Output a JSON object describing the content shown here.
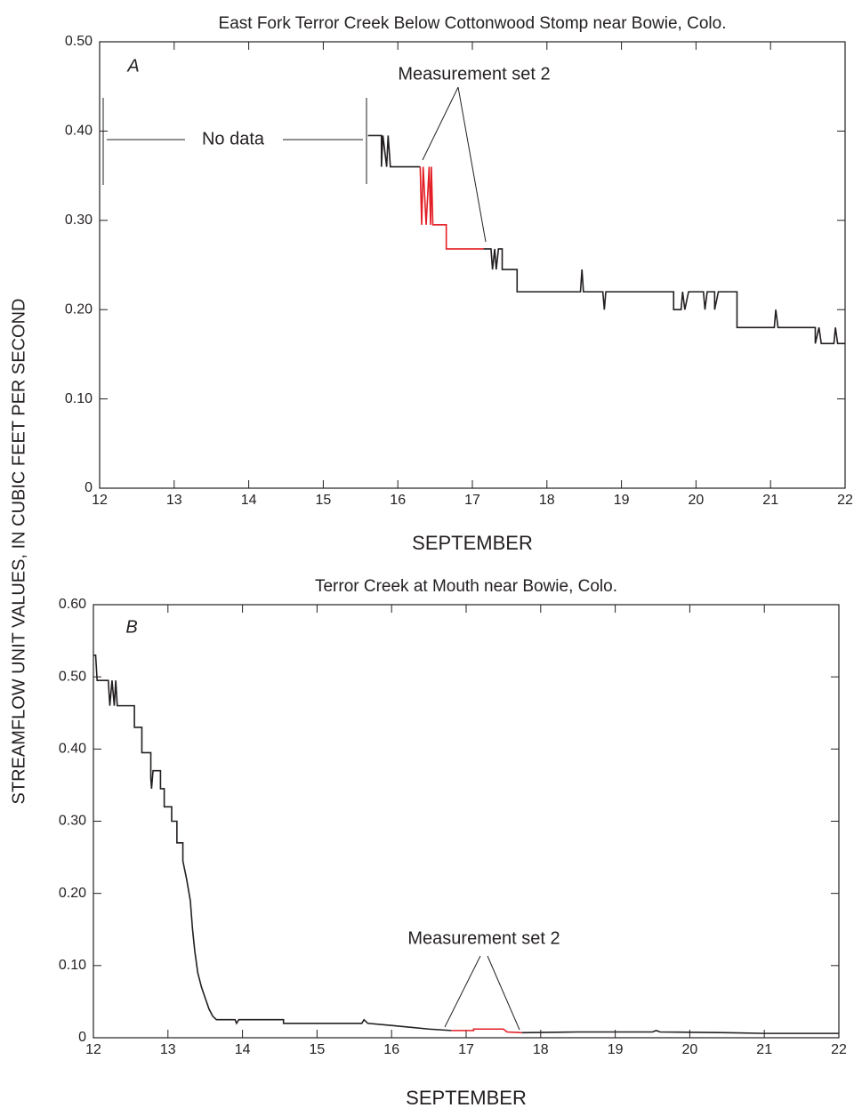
{
  "y_label": "STREAMFLOW UNIT VALUES, IN CUBIC FEET PER SECOND",
  "chart_data": [
    {
      "type": "line",
      "title": "East Fork Terror Creek Below Cottonwood Stomp near Bowie, Colo.",
      "panel_label": "A",
      "x_label": "SEPTEMBER",
      "annotations": [
        "No data",
        "Measurement set 2"
      ],
      "xlim": [
        12,
        22
      ],
      "xticks": [
        12,
        13,
        14,
        15,
        16,
        17,
        18,
        19,
        20,
        21,
        22
      ],
      "ylim": [
        0,
        0.5
      ],
      "yticks": [
        0,
        {
          "value": 0.1,
          "label": "0.10"
        },
        {
          "value": 0.2,
          "label": "0.20"
        },
        {
          "value": 0.3,
          "label": "0.30"
        },
        {
          "value": 0.4,
          "label": "0.40"
        },
        {
          "value": 0.5,
          "label": "0.50"
        }
      ],
      "series": [
        {
          "color": "#231f20",
          "x": [
            15.6,
            15.78,
            15.78,
            15.8,
            15.85,
            15.87,
            15.9,
            16.3
          ],
          "values": [
            0.395,
            0.395,
            0.36,
            0.395,
            0.36,
            0.395,
            0.36,
            0.36
          ]
        },
        {
          "color": "#e31e24",
          "x": [
            16.3,
            16.32,
            16.34,
            16.38,
            16.42,
            16.44,
            16.45,
            16.47,
            16.65,
            16.65,
            17.15
          ],
          "values": [
            0.36,
            0.295,
            0.36,
            0.295,
            0.36,
            0.295,
            0.36,
            0.295,
            0.295,
            0.268,
            0.268
          ]
        },
        {
          "color": "#231f20",
          "x": [
            17.15,
            17.25,
            17.27,
            17.3,
            17.32,
            17.35,
            17.4,
            17.4,
            17.6,
            17.6,
            18.45,
            18.47,
            18.49,
            18.75,
            18.77,
            18.79,
            19.7,
            19.7,
            19.8,
            19.82,
            19.85,
            19.9,
            20.1,
            20.12,
            20.15,
            20.25,
            20.25,
            20.3,
            20.55,
            20.55,
            21.05,
            21.07,
            21.1,
            21.6,
            21.6,
            21.65,
            21.68,
            21.85,
            21.87,
            21.9,
            22
          ],
          "values": [
            0.268,
            0.268,
            0.245,
            0.268,
            0.245,
            0.268,
            0.268,
            0.245,
            0.245,
            0.22,
            0.22,
            0.245,
            0.22,
            0.22,
            0.2,
            0.22,
            0.22,
            0.2,
            0.2,
            0.22,
            0.2,
            0.22,
            0.22,
            0.2,
            0.22,
            0.22,
            0.2,
            0.22,
            0.22,
            0.18,
            0.18,
            0.2,
            0.18,
            0.18,
            0.162,
            0.18,
            0.162,
            0.162,
            0.18,
            0.162,
            0.162
          ]
        }
      ]
    },
    {
      "type": "line",
      "title": "Terror Creek at Mouth near Bowie, Colo.",
      "panel_label": "B",
      "x_label": "SEPTEMBER",
      "annotations": [
        "Measurement set 2"
      ],
      "xlim": [
        12,
        22
      ],
      "xticks": [
        12,
        13,
        14,
        15,
        16,
        17,
        18,
        19,
        20,
        21,
        22
      ],
      "ylim": [
        0,
        0.6
      ],
      "yticks": [
        0,
        {
          "value": 0.1,
          "label": "0.10"
        },
        {
          "value": 0.2,
          "label": "0.20"
        },
        {
          "value": 0.3,
          "label": "0.30"
        },
        {
          "value": 0.4,
          "label": "0.40"
        },
        {
          "value": 0.5,
          "label": "0.50"
        },
        {
          "value": 0.6,
          "label": "0.60"
        }
      ],
      "series": [
        {
          "color": "#231f20",
          "x": [
            12,
            12.03,
            12.05,
            12.2,
            12.22,
            12.25,
            12.28,
            12.3,
            12.32,
            12.55,
            12.55,
            12.65,
            12.65,
            12.77,
            12.77,
            12.78,
            12.8,
            12.9,
            12.9,
            12.95,
            12.95,
            13.05,
            13.05,
            13.12,
            13.12,
            13.2,
            13.2,
            13.25,
            13.3,
            13.33,
            13.36,
            13.4,
            13.45,
            13.5,
            13.55,
            13.6,
            13.65,
            13.9,
            13.92,
            13.95,
            14.55,
            14.55,
            15.6,
            15.63,
            15.68,
            16,
            16.2,
            16.5,
            16.8
          ],
          "values": [
            0.53,
            0.53,
            0.495,
            0.495,
            0.46,
            0.495,
            0.46,
            0.495,
            0.46,
            0.46,
            0.43,
            0.43,
            0.395,
            0.395,
            0.36,
            0.345,
            0.37,
            0.37,
            0.345,
            0.345,
            0.32,
            0.32,
            0.3,
            0.3,
            0.27,
            0.27,
            0.245,
            0.22,
            0.19,
            0.15,
            0.12,
            0.09,
            0.07,
            0.055,
            0.04,
            0.03,
            0.025,
            0.025,
            0.02,
            0.025,
            0.025,
            0.02,
            0.02,
            0.025,
            0.02,
            0.017,
            0.015,
            0.012,
            0.01
          ]
        },
        {
          "color": "#e31e24",
          "x": [
            16.8,
            17.1,
            17.1,
            17.5,
            17.55,
            17.75
          ],
          "values": [
            0.01,
            0.01,
            0.012,
            0.012,
            0.008,
            0.007
          ]
        },
        {
          "color": "#231f20",
          "x": [
            17.75,
            18.5,
            19.5,
            19.55,
            19.6,
            20.5,
            21,
            22
          ],
          "values": [
            0.007,
            0.008,
            0.008,
            0.01,
            0.008,
            0.007,
            0.006,
            0.006
          ]
        }
      ]
    }
  ]
}
